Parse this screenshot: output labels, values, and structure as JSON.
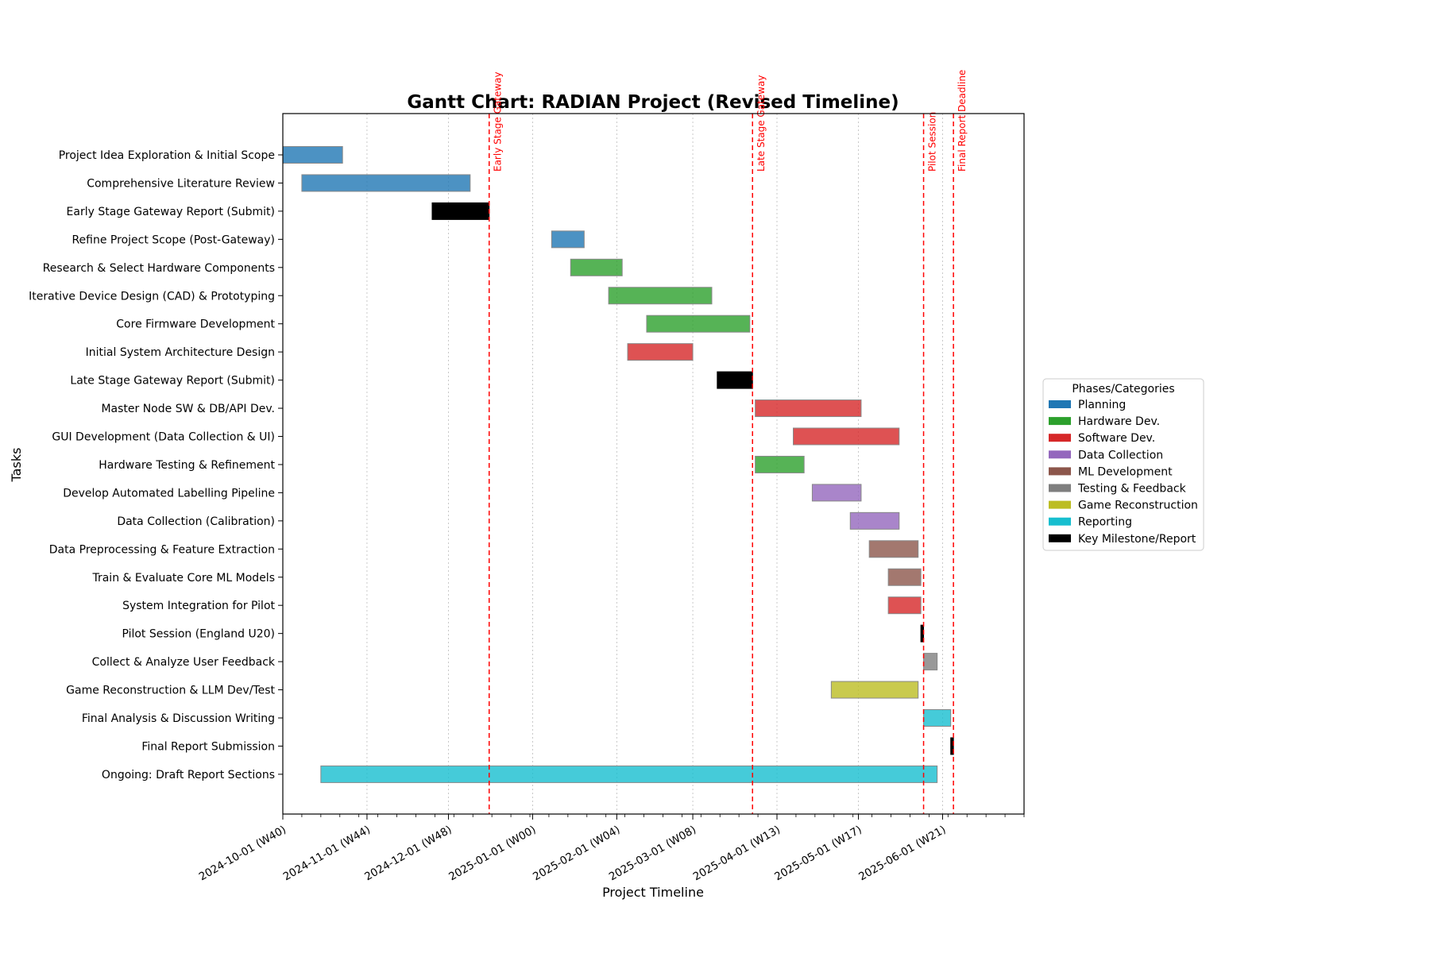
{
  "chart_data": {
    "type": "gantt",
    "title": "Gantt Chart: RADIAN Project (Revised Timeline)",
    "xlabel": "Project Timeline",
    "ylabel": "Tasks",
    "xlim": [
      "2024-10-01",
      "2025-07-01"
    ],
    "x_ticks": [
      {
        "date": "2024-10-01",
        "label": "2024-10-01 (W40)"
      },
      {
        "date": "2024-11-01",
        "label": "2024-11-01 (W44)"
      },
      {
        "date": "2024-12-01",
        "label": "2024-12-01 (W48)"
      },
      {
        "date": "2025-01-01",
        "label": "2025-01-01 (W00)"
      },
      {
        "date": "2025-02-01",
        "label": "2025-02-01 (W04)"
      },
      {
        "date": "2025-03-01",
        "label": "2025-03-01 (W08)"
      },
      {
        "date": "2025-04-01",
        "label": "2025-04-01 (W13)"
      },
      {
        "date": "2025-05-01",
        "label": "2025-05-01 (W17)"
      },
      {
        "date": "2025-06-01",
        "label": "2025-06-01 (W21)"
      }
    ],
    "grid": "vertical dotted",
    "legend_title": "Phases/Categories",
    "legend_position": "right",
    "categories": [
      {
        "name": "Planning",
        "color": "#1f77b4"
      },
      {
        "name": "Hardware Dev.",
        "color": "#2ca02c"
      },
      {
        "name": "Software Dev.",
        "color": "#d62728"
      },
      {
        "name": "Data Collection",
        "color": "#9467bd"
      },
      {
        "name": "ML Development",
        "color": "#8c564b"
      },
      {
        "name": "Testing & Feedback",
        "color": "#7f7f7f"
      },
      {
        "name": "Game Reconstruction",
        "color": "#bcbd22"
      },
      {
        "name": "Reporting",
        "color": "#17becf"
      },
      {
        "name": "Key Milestone/Report",
        "color": "#000000"
      }
    ],
    "tasks": [
      {
        "name": "Project Idea Exploration & Initial Scope",
        "start": "2024-10-01",
        "end": "2024-10-22",
        "category": "Planning"
      },
      {
        "name": "Comprehensive Literature Review",
        "start": "2024-10-08",
        "end": "2024-12-08",
        "category": "Planning"
      },
      {
        "name": "Early Stage Gateway Report (Submit)",
        "start": "2024-11-25",
        "end": "2024-12-15",
        "category": "Key Milestone/Report"
      },
      {
        "name": "Refine Project Scope (Post-Gateway)",
        "start": "2025-01-08",
        "end": "2025-01-19",
        "category": "Planning"
      },
      {
        "name": "Research & Select Hardware Components",
        "start": "2025-01-15",
        "end": "2025-02-02",
        "category": "Hardware Dev."
      },
      {
        "name": "Iterative Device Design (CAD) & Prototyping",
        "start": "2025-01-29",
        "end": "2025-03-07",
        "category": "Hardware Dev."
      },
      {
        "name": "Core Firmware Development",
        "start": "2025-02-12",
        "end": "2025-03-21",
        "category": "Hardware Dev."
      },
      {
        "name": "Initial System Architecture Design",
        "start": "2025-02-05",
        "end": "2025-02-28",
        "category": "Software Dev."
      },
      {
        "name": "Late Stage Gateway Report (Submit)",
        "start": "2025-03-10",
        "end": "2025-03-22",
        "category": "Key Milestone/Report"
      },
      {
        "name": "Master Node SW & DB/API Dev.",
        "start": "2025-03-24",
        "end": "2025-05-01",
        "category": "Software Dev."
      },
      {
        "name": "GUI Development (Data Collection & UI)",
        "start": "2025-04-07",
        "end": "2025-05-15",
        "category": "Software Dev."
      },
      {
        "name": "Hardware Testing & Refinement",
        "start": "2025-03-24",
        "end": "2025-04-10",
        "category": "Hardware Dev."
      },
      {
        "name": "Develop Automated Labelling Pipeline",
        "start": "2025-04-14",
        "end": "2025-05-01",
        "category": "Data Collection"
      },
      {
        "name": "Data Collection (Calibration)",
        "start": "2025-04-28",
        "end": "2025-05-15",
        "category": "Data Collection"
      },
      {
        "name": "Data Preprocessing & Feature Extraction",
        "start": "2025-05-05",
        "end": "2025-05-22",
        "category": "ML Development"
      },
      {
        "name": "Train & Evaluate Core ML Models",
        "start": "2025-05-12",
        "end": "2025-05-23",
        "category": "ML Development"
      },
      {
        "name": "System Integration for Pilot",
        "start": "2025-05-12",
        "end": "2025-05-23",
        "category": "Software Dev."
      },
      {
        "name": "Pilot Session (England U20)",
        "start": "2025-05-24",
        "end": "2025-05-24",
        "category": "Key Milestone/Report"
      },
      {
        "name": "Collect & Analyze User Feedback",
        "start": "2025-05-25",
        "end": "2025-05-29",
        "category": "Testing & Feedback"
      },
      {
        "name": "Game Reconstruction & LLM Dev/Test",
        "start": "2025-04-21",
        "end": "2025-05-22",
        "category": "Game Reconstruction"
      },
      {
        "name": "Final Analysis & Discussion Writing",
        "start": "2025-05-25",
        "end": "2025-06-03",
        "category": "Reporting"
      },
      {
        "name": "Final Report Submission",
        "start": "2025-06-04",
        "end": "2025-06-04",
        "category": "Key Milestone/Report"
      },
      {
        "name": "Ongoing: Draft Report Sections",
        "start": "2024-10-15",
        "end": "2025-05-29",
        "category": "Reporting"
      }
    ],
    "milestones": [
      {
        "label": "Early Stage Gateway",
        "date": "2024-12-15",
        "color": "#ff0000"
      },
      {
        "label": "Late Stage Gateway",
        "date": "2025-03-22",
        "color": "#ff0000"
      },
      {
        "label": "Pilot Session",
        "date": "2025-05-24",
        "color": "#ff0000"
      },
      {
        "label": "Final Report Deadline",
        "date": "2025-06-04",
        "color": "#ff0000"
      }
    ]
  }
}
